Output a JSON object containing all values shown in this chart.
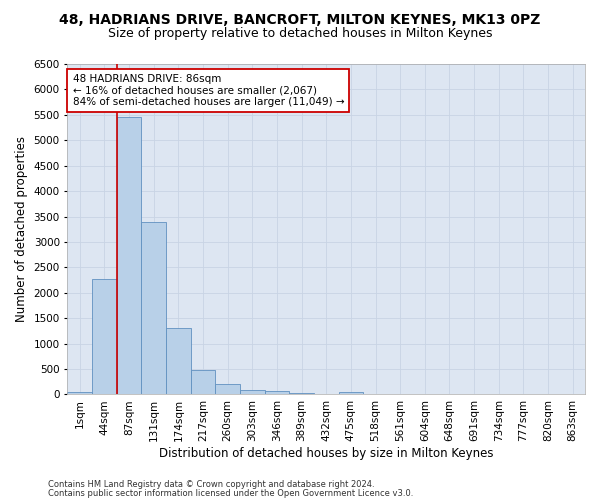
{
  "title1": "48, HADRIANS DRIVE, BANCROFT, MILTON KEYNES, MK13 0PZ",
  "title2": "Size of property relative to detached houses in Milton Keynes",
  "xlabel": "Distribution of detached houses by size in Milton Keynes",
  "ylabel": "Number of detached properties",
  "categories": [
    "1sqm",
    "44sqm",
    "87sqm",
    "131sqm",
    "174sqm",
    "217sqm",
    "260sqm",
    "303sqm",
    "346sqm",
    "389sqm",
    "432sqm",
    "475sqm",
    "518sqm",
    "561sqm",
    "604sqm",
    "648sqm",
    "691sqm",
    "734sqm",
    "777sqm",
    "820sqm",
    "863sqm"
  ],
  "values": [
    50,
    2280,
    5450,
    3400,
    1300,
    490,
    200,
    90,
    60,
    30,
    10,
    50,
    5,
    2,
    1,
    1,
    0,
    0,
    0,
    0,
    0
  ],
  "bar_color": "#b8d0e8",
  "bar_edge_color": "#6090c0",
  "property_line_x": 2,
  "property_line_color": "#cc0000",
  "annotation_text": "48 HADRIANS DRIVE: 86sqm\n← 16% of detached houses are smaller (2,067)\n84% of semi-detached houses are larger (11,049) →",
  "annotation_box_color": "#ffffff",
  "annotation_box_edge_color": "#cc0000",
  "ylim": [
    0,
    6500
  ],
  "yticks": [
    0,
    500,
    1000,
    1500,
    2000,
    2500,
    3000,
    3500,
    4000,
    4500,
    5000,
    5500,
    6000,
    6500
  ],
  "footer1": "Contains HM Land Registry data © Crown copyright and database right 2024.",
  "footer2": "Contains public sector information licensed under the Open Government Licence v3.0.",
  "bg_color": "#ffffff",
  "grid_color": "#c8d4e4",
  "title1_fontsize": 10,
  "title2_fontsize": 9,
  "xlabel_fontsize": 8.5,
  "ylabel_fontsize": 8.5,
  "tick_fontsize": 7.5,
  "annotation_fontsize": 7.5,
  "footer_fontsize": 6.0
}
